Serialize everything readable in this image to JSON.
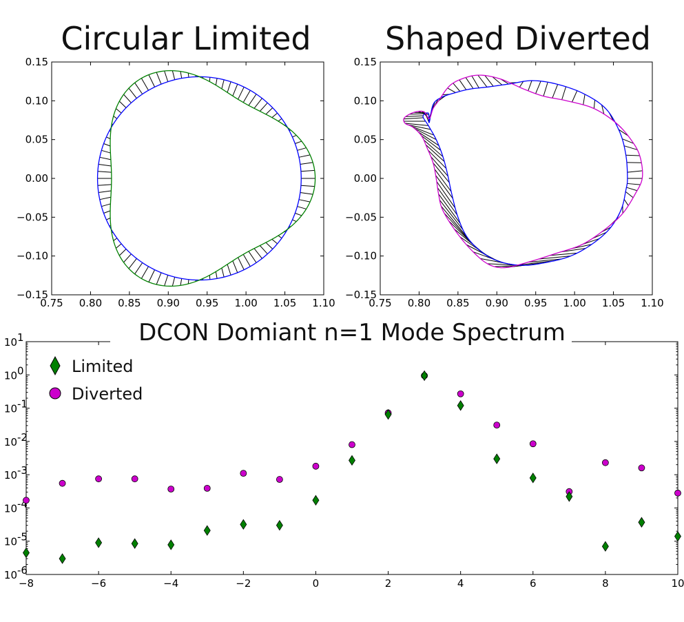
{
  "chart_data": [
    {
      "type": "line",
      "title": "Circular Limited",
      "xlim": [
        0.75,
        1.1
      ],
      "ylim": [
        -0.15,
        0.15
      ],
      "x_ticks": [
        "0.75",
        "0.80",
        "0.85",
        "0.90",
        "0.95",
        "1.00",
        "1.05",
        "1.10"
      ],
      "y_ticks": [
        "0.15",
        "0.10",
        "0.05",
        "0.00",
        "−0.05",
        "−0.10",
        "−0.15"
      ],
      "grid": false,
      "series": [
        {
          "role": "equilibrium",
          "color": "#0000ff",
          "shape": "circle",
          "center": [
            0.94,
            0.0
          ],
          "radius": 0.131
        },
        {
          "role": "perturbed",
          "color": "#008000",
          "shape": "circle-perturbation-m3",
          "center": [
            0.94,
            0.0
          ],
          "radius": 0.131,
          "amplitude": 0.018,
          "m": 3,
          "phase": 0
        }
      ]
    },
    {
      "type": "line",
      "title": "Shaped Diverted",
      "xlim": [
        0.75,
        1.1
      ],
      "ylim": [
        -0.15,
        0.15
      ],
      "x_ticks": [
        "0.75",
        "0.80",
        "0.85",
        "0.90",
        "0.95",
        "1.00",
        "1.05",
        "1.10"
      ],
      "y_ticks": [
        "0.15",
        "0.10",
        "0.05",
        "0.00",
        "−0.05",
        "−0.10",
        "−0.15"
      ],
      "grid": false,
      "series": [
        {
          "role": "equilibrium",
          "color": "#0000ff",
          "points": [
            [
              1.068,
              0.0
            ],
            [
              1.066,
              0.03
            ],
            [
              1.058,
              0.06
            ],
            [
              1.04,
              0.09
            ],
            [
              1.01,
              0.11
            ],
            [
              0.975,
              0.122
            ],
            [
              0.945,
              0.126
            ],
            [
              0.918,
              0.122
            ],
            [
              0.89,
              0.118
            ],
            [
              0.865,
              0.115
            ],
            [
              0.845,
              0.11
            ],
            [
              0.828,
              0.104
            ],
            [
              0.818,
              0.095
            ],
            [
              0.813,
              0.072
            ],
            [
              0.812,
              0.084
            ],
            [
              0.805,
              0.08
            ],
            [
              0.812,
              0.068
            ],
            [
              0.822,
              0.05
            ],
            [
              0.83,
              0.03
            ],
            [
              0.836,
              0.008
            ],
            [
              0.842,
              -0.02
            ],
            [
              0.85,
              -0.05
            ],
            [
              0.862,
              -0.076
            ],
            [
              0.882,
              -0.096
            ],
            [
              0.906,
              -0.108
            ],
            [
              0.935,
              -0.112
            ],
            [
              0.965,
              -0.108
            ],
            [
              0.995,
              -0.1
            ],
            [
              1.022,
              -0.085
            ],
            [
              1.045,
              -0.065
            ],
            [
              1.06,
              -0.04
            ],
            [
              1.066,
              -0.015
            ],
            [
              1.068,
              0.0
            ]
          ]
        },
        {
          "role": "perturbed",
          "color": "#cc00cc",
          "points": [
            [
              1.087,
              0.0
            ],
            [
              1.085,
              0.025
            ],
            [
              1.076,
              0.045
            ],
            [
              1.055,
              0.07
            ],
            [
              1.025,
              0.09
            ],
            [
              0.99,
              0.1
            ],
            [
              0.96,
              0.106
            ],
            [
              0.935,
              0.115
            ],
            [
              0.905,
              0.128
            ],
            [
              0.88,
              0.133
            ],
            [
              0.86,
              0.13
            ],
            [
              0.84,
              0.12
            ],
            [
              0.825,
              0.1
            ],
            [
              0.818,
              0.09
            ],
            [
              0.813,
              0.077
            ],
            [
              0.806,
              0.086
            ],
            [
              0.793,
              0.085
            ],
            [
              0.781,
              0.078
            ],
            [
              0.782,
              0.071
            ],
            [
              0.792,
              0.066
            ],
            [
              0.803,
              0.055
            ],
            [
              0.81,
              0.04
            ],
            [
              0.818,
              0.02
            ],
            [
              0.822,
              0.0
            ],
            [
              0.825,
              -0.02
            ],
            [
              0.83,
              -0.04
            ],
            [
              0.845,
              -0.065
            ],
            [
              0.865,
              -0.09
            ],
            [
              0.888,
              -0.11
            ],
            [
              0.91,
              -0.115
            ],
            [
              0.94,
              -0.108
            ],
            [
              0.975,
              -0.097
            ],
            [
              1.01,
              -0.085
            ],
            [
              1.04,
              -0.065
            ],
            [
              1.062,
              -0.045
            ],
            [
              1.078,
              -0.02
            ],
            [
              1.087,
              0.0
            ]
          ]
        }
      ]
    },
    {
      "type": "scatter",
      "title": "DCON Domiant n=1 Mode Spectrum",
      "xlim": [
        -8,
        10
      ],
      "ylim_log10": [
        -6,
        1
      ],
      "y_scale": "log",
      "x_ticks": [
        "−8",
        "−6",
        "−4",
        "−2",
        "0",
        "2",
        "4",
        "6",
        "8",
        "10"
      ],
      "y_ticks": [
        {
          "base": "10",
          "exp": "1"
        },
        {
          "base": "10",
          "exp": "0"
        },
        {
          "base": "10",
          "exp": "-1"
        },
        {
          "base": "10",
          "exp": "-2"
        },
        {
          "base": "10",
          "exp": "-3"
        },
        {
          "base": "10",
          "exp": "-4"
        },
        {
          "base": "10",
          "exp": "-5"
        },
        {
          "base": "10",
          "exp": "-6"
        }
      ],
      "legend_position": "top-left",
      "grid": false,
      "x": [
        -8,
        -7,
        -6,
        -5,
        -4,
        -3,
        -2,
        -1,
        0,
        1,
        2,
        3,
        4,
        5,
        6,
        7,
        8,
        9,
        10
      ],
      "series": [
        {
          "name": "Limited",
          "marker": "diamond",
          "color": "#008000",
          "values": [
            4.5e-06,
            3e-06,
            9e-06,
            8.5e-06,
            7.8e-06,
            2.1e-05,
            3.2e-05,
            3e-05,
            0.00017,
            0.0027,
            0.065,
            0.95,
            0.12,
            0.003,
            0.0008,
            0.00022,
            7e-06,
            3.7e-05,
            1.4e-05
          ]
        },
        {
          "name": "Diverted",
          "marker": "circle",
          "color": "#cc00cc",
          "values": [
            0.00017,
            0.00055,
            0.00075,
            0.00075,
            0.00037,
            0.00039,
            0.0011,
            0.00072,
            0.0018,
            0.008,
            0.072,
            0.95,
            0.27,
            0.031,
            0.0085,
            0.00031,
            0.0023,
            0.0016,
            0.00028
          ]
        }
      ]
    }
  ]
}
